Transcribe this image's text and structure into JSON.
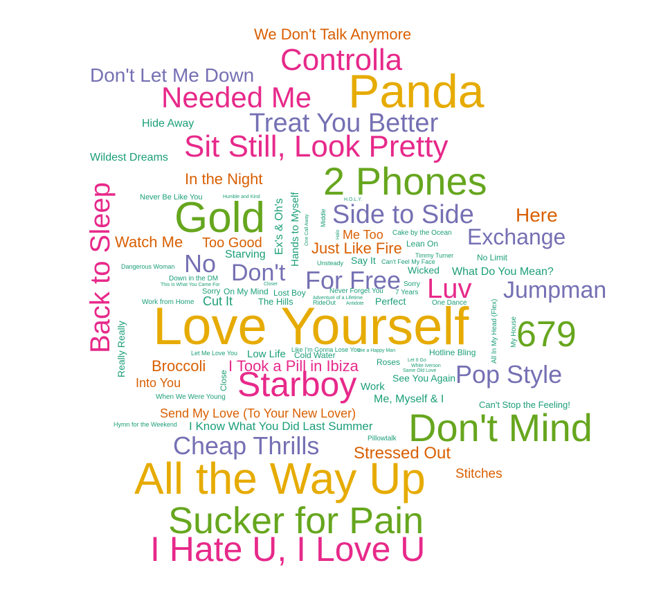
{
  "colors": {
    "orange": "#d95f02",
    "slate": "#7570b3",
    "pink": "#e7298a",
    "green": "#66a61e",
    "gold": "#e6ab02",
    "teal": "#1b9e77"
  },
  "words": [
    {
      "text": "We Don't Talk Anymore",
      "color": "orange"
    },
    {
      "text": "Controlla",
      "color": "pink"
    },
    {
      "text": "Don't Let Me Down",
      "color": "slate"
    },
    {
      "text": "Needed Me",
      "color": "pink"
    },
    {
      "text": "Panda",
      "color": "gold"
    },
    {
      "text": "Hide Away",
      "color": "teal"
    },
    {
      "text": "Treat You Better",
      "color": "slate"
    },
    {
      "text": "Wildest Dreams",
      "color": "teal"
    },
    {
      "text": "Sit Still, Look Pretty",
      "color": "pink"
    },
    {
      "text": "In the Night",
      "color": "orange"
    },
    {
      "text": "2 Phones",
      "color": "green"
    },
    {
      "text": "Back to Sleep",
      "color": "pink"
    },
    {
      "text": "Never Be Like You",
      "color": "teal"
    },
    {
      "text": "Humble and Kind",
      "color": "teal"
    },
    {
      "text": "H.O.L.Y.",
      "color": "teal"
    },
    {
      "text": "Gold",
      "color": "green"
    },
    {
      "text": "Ex's & Oh's",
      "color": "teal"
    },
    {
      "text": "Hands to Myself",
      "color": "teal"
    },
    {
      "text": "One Call Away",
      "color": "teal"
    },
    {
      "text": "Middle",
      "color": "teal"
    },
    {
      "text": "Side to Side",
      "color": "slate"
    },
    {
      "text": "Here",
      "color": "orange"
    },
    {
      "text": "Halo",
      "color": "teal"
    },
    {
      "text": "Me Too",
      "color": "orange"
    },
    {
      "text": "Cake by the Ocean",
      "color": "teal"
    },
    {
      "text": "Exchange",
      "color": "slate"
    },
    {
      "text": "Watch Me",
      "color": "orange"
    },
    {
      "text": "Too Good",
      "color": "orange"
    },
    {
      "text": "Starving",
      "color": "teal"
    },
    {
      "text": "Just Like Fire",
      "color": "orange"
    },
    {
      "text": "Lean On",
      "color": "teal"
    },
    {
      "text": "Timmy Turner",
      "color": "teal"
    },
    {
      "text": "No Limit",
      "color": "teal"
    },
    {
      "text": "Dangerous Woman",
      "color": "teal"
    },
    {
      "text": "No",
      "color": "slate"
    },
    {
      "text": "Don't",
      "color": "slate"
    },
    {
      "text": "Unsteady",
      "color": "teal"
    },
    {
      "text": "Say It",
      "color": "teal"
    },
    {
      "text": "Can't Feel My Face",
      "color": "teal"
    },
    {
      "text": "Wicked",
      "color": "teal"
    },
    {
      "text": "What Do You Mean?",
      "color": "teal"
    },
    {
      "text": "Down in the DM",
      "color": "teal"
    },
    {
      "text": "For Free",
      "color": "slate"
    },
    {
      "text": "Sorry",
      "color": "teal"
    },
    {
      "text": "Luv",
      "color": "pink"
    },
    {
      "text": "Jumpman",
      "color": "slate"
    },
    {
      "text": "This Is What You Came For",
      "color": "teal"
    },
    {
      "text": "Closer",
      "color": "teal"
    },
    {
      "text": "Sorry",
      "color": "teal"
    },
    {
      "text": "On My Mind",
      "color": "teal"
    },
    {
      "text": "Lost Boy",
      "color": "teal"
    },
    {
      "text": "Never Forget You",
      "color": "teal"
    },
    {
      "text": "7 Years",
      "color": "teal"
    },
    {
      "text": "Adventure of a Lifetime",
      "color": "teal"
    },
    {
      "text": "Work from Home",
      "color": "teal"
    },
    {
      "text": "Cut It",
      "color": "teal"
    },
    {
      "text": "The Hills",
      "color": "teal"
    },
    {
      "text": "RideOut",
      "color": "teal"
    },
    {
      "text": "Antidote",
      "color": "teal"
    },
    {
      "text": "Perfect",
      "color": "teal"
    },
    {
      "text": "One Dance",
      "color": "teal"
    },
    {
      "text": "All In My Head (Flex)",
      "color": "teal"
    },
    {
      "text": "Really Really",
      "color": "teal"
    },
    {
      "text": "Love Yourself",
      "color": "gold"
    },
    {
      "text": "My House",
      "color": "teal"
    },
    {
      "text": "679",
      "color": "green"
    },
    {
      "text": "Let Me Love You",
      "color": "teal"
    },
    {
      "text": "Low Life",
      "color": "teal"
    },
    {
      "text": "Like I'm Gonna Lose You",
      "color": "teal"
    },
    {
      "text": "Die a Happy Man",
      "color": "teal"
    },
    {
      "text": "Hotline Bling",
      "color": "teal"
    },
    {
      "text": "Cold Water",
      "color": "teal"
    },
    {
      "text": "Broccoli",
      "color": "orange"
    },
    {
      "text": "I Took a Pill in Ibiza",
      "color": "pink"
    },
    {
      "text": "Roses",
      "color": "teal"
    },
    {
      "text": "Let It Go",
      "color": "teal"
    },
    {
      "text": "White Iverson",
      "color": "teal"
    },
    {
      "text": "Same Old Love",
      "color": "teal"
    },
    {
      "text": "Pop Style",
      "color": "slate"
    },
    {
      "text": "Close",
      "color": "teal"
    },
    {
      "text": "Into You",
      "color": "orange"
    },
    {
      "text": "Starboy",
      "color": "pink"
    },
    {
      "text": "Work",
      "color": "teal"
    },
    {
      "text": "See You Again",
      "color": "teal"
    },
    {
      "text": "When We Were Young",
      "color": "teal"
    },
    {
      "text": "Me, Myself & I",
      "color": "teal"
    },
    {
      "text": "Can't Stop the Feeling!",
      "color": "teal"
    },
    {
      "text": "Send My Love (To Your New Lover)",
      "color": "orange"
    },
    {
      "text": "Don't Mind",
      "color": "green"
    },
    {
      "text": "Hymn for the Weekend",
      "color": "teal"
    },
    {
      "text": "I Know What You Did Last Summer",
      "color": "teal"
    },
    {
      "text": "Pillowtalk",
      "color": "teal"
    },
    {
      "text": "Cheap Thrills",
      "color": "slate"
    },
    {
      "text": "Stressed Out",
      "color": "orange"
    },
    {
      "text": "All the Way Up",
      "color": "gold"
    },
    {
      "text": "Stitches",
      "color": "orange"
    },
    {
      "text": "Sucker for Pain",
      "color": "green"
    },
    {
      "text": "I Hate U, I Love U",
      "color": "pink"
    }
  ]
}
